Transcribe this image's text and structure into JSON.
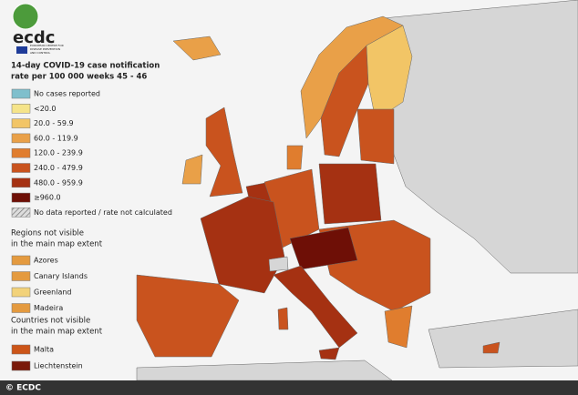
{
  "header": {
    "logo_text": "ecdc",
    "logo_subtext": [
      "EUROPEAN CENTRE FOR",
      "DISEASE PREVENTION",
      "AND CONTROL"
    ]
  },
  "legend": {
    "title_lines": [
      "14-day COVID-19 case notification",
      "rate per 100 000 weeks 45 - 46"
    ],
    "items": [
      {
        "label": "No cases reported",
        "color": "#7fbfcc"
      },
      {
        "label": "<20.0",
        "color": "#f5e48a"
      },
      {
        "label": "20.0 - 59.9",
        "color": "#f2c566"
      },
      {
        "label": "60.0 - 119.9",
        "color": "#e9a048"
      },
      {
        "label": "120.0 - 239.9",
        "color": "#e07d2e"
      },
      {
        "label": "240.0 - 479.9",
        "color": "#c9531e"
      },
      {
        "label": "480.0 - 959.9",
        "color": "#a53112"
      },
      {
        "label": "≥960.0",
        "color": "#6e0f06"
      },
      {
        "label": "No data reported / rate not calculated",
        "color": "hatch"
      }
    ]
  },
  "regions": {
    "title_lines": [
      "Regions not visible",
      "in the main map extent"
    ],
    "items": [
      {
        "label": "Azores",
        "color": "#e49a3f"
      },
      {
        "label": "Canary Islands",
        "color": "#e49a3f"
      },
      {
        "label": "Greenland",
        "color": "#f2d27a"
      },
      {
        "label": "Madeira",
        "color": "#e49a3f"
      }
    ]
  },
  "countries": {
    "title_lines": [
      "Countries not visible",
      "in the main map extent"
    ],
    "items": [
      {
        "label": "Malta",
        "color": "#cc5518"
      },
      {
        "label": "Liechtenstein",
        "color": "#7a1a0a"
      }
    ]
  },
  "footer": {
    "credit": "© ECDC"
  }
}
